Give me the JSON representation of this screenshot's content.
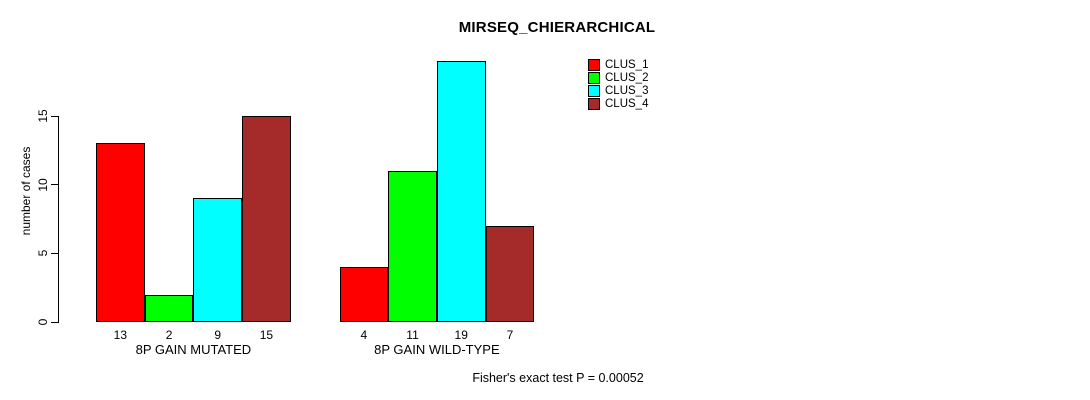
{
  "chart_data": {
    "type": "bar",
    "title": "MIRSEQ_CHIERARCHICAL",
    "ylabel": "number of cases",
    "xlabel": "",
    "ylim": [
      0,
      15
    ],
    "yticks": [
      0,
      5,
      10,
      15
    ],
    "grid": false,
    "legend_position": "top-right",
    "groups": [
      "8P GAIN MUTATED",
      "8P GAIN WILD-TYPE"
    ],
    "series": [
      {
        "name": "CLUS_1",
        "color": "#ff0000",
        "values": [
          13,
          4
        ]
      },
      {
        "name": "CLUS_2",
        "color": "#00ff00",
        "values": [
          2,
          11
        ]
      },
      {
        "name": "CLUS_3",
        "color": "#00ffff",
        "values": [
          9,
          19
        ]
      },
      {
        "name": "CLUS_4",
        "color": "#a52a2a",
        "values": [
          15,
          7
        ]
      }
    ],
    "annotation": "Fisher's exact test P = 0.00052",
    "background_color": "#ffffff",
    "axis_color": "#000000"
  }
}
